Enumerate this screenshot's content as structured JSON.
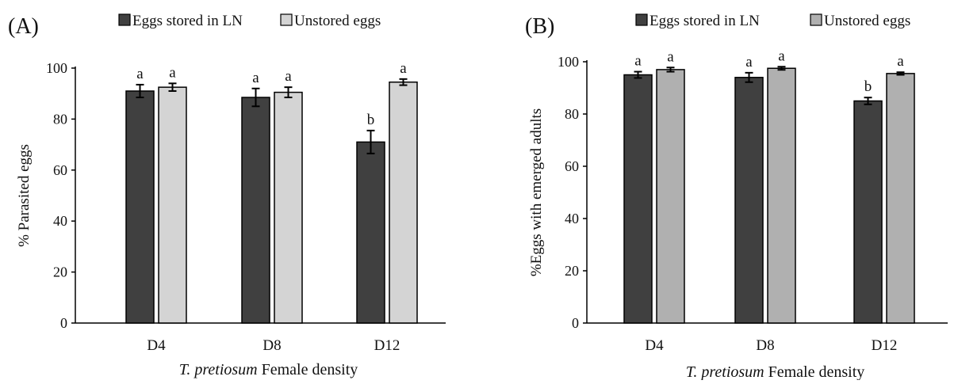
{
  "chart_data": [
    {
      "type": "bar",
      "panel_label": "(A)",
      "categories": [
        "D4",
        "D8",
        "D12"
      ],
      "xlabel_italic": "T. pretiosum",
      "xlabel_rest": " Female density",
      "ylabel": "% Parasited eggs",
      "ylim": [
        0,
        100
      ],
      "yticks": [
        0,
        20,
        40,
        60,
        80,
        100
      ],
      "legend_position": "top",
      "series": [
        {
          "name": "Eggs stored in LN",
          "color": "#404040",
          "values": [
            91.0,
            88.5,
            71.0
          ],
          "errors": [
            2.5,
            3.5,
            4.5
          ],
          "letters": [
            "a",
            "a",
            "b"
          ]
        },
        {
          "name": "Unstored eggs",
          "color": "#d4d4d4",
          "values": [
            92.5,
            90.5,
            94.5
          ],
          "errors": [
            1.5,
            2.0,
            1.2
          ],
          "letters": [
            "a",
            "a",
            "a"
          ]
        }
      ]
    },
    {
      "type": "bar",
      "panel_label": "(B)",
      "categories": [
        "D4",
        "D8",
        "D12"
      ],
      "xlabel_italic": "T. pretiosum",
      "xlabel_rest": " Female density",
      "ylabel": "%Eggs with emerged adults",
      "ylim": [
        0,
        100
      ],
      "yticks": [
        0,
        20,
        40,
        60,
        80,
        100
      ],
      "legend_position": "top",
      "series": [
        {
          "name": "Eggs stored in LN",
          "color": "#404040",
          "values": [
            95.0,
            94.0,
            85.0
          ],
          "errors": [
            1.2,
            1.8,
            1.3
          ],
          "letters": [
            "a",
            "a",
            "b"
          ]
        },
        {
          "name": "Unstored eggs",
          "color": "#b0b0b0",
          "values": [
            97.0,
            97.5,
            95.5
          ],
          "errors": [
            0.8,
            0.6,
            0.5
          ],
          "letters": [
            "a",
            "a",
            "a"
          ]
        }
      ]
    }
  ]
}
